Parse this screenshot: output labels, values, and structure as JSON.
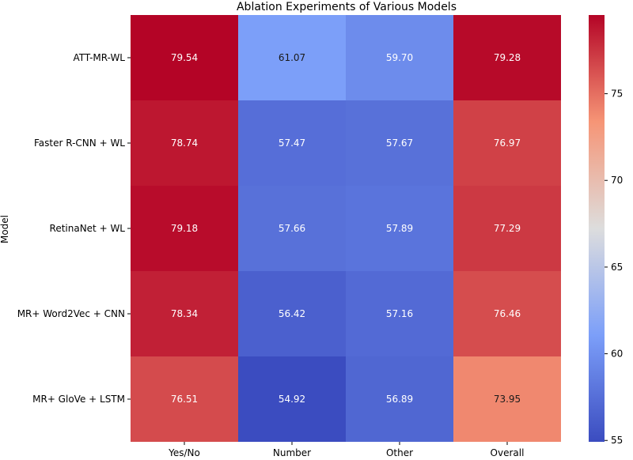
{
  "chart_data": {
    "type": "heatmap",
    "title": "Ablation Experiments of Various Models",
    "xlabel": "",
    "ylabel": "Model",
    "columns": [
      "Yes/No",
      "Number",
      "Other",
      "Overall"
    ],
    "rows": [
      "ATT-MR-WL",
      "Faster R-CNN + WL",
      "RetinaNet + WL",
      "MR+ Word2Vec + CNN",
      "MR+ GloVe + LSTM"
    ],
    "values": [
      [
        79.54,
        61.07,
        59.7,
        79.28
      ],
      [
        78.74,
        57.47,
        57.67,
        76.97
      ],
      [
        79.18,
        57.66,
        57.89,
        77.29
      ],
      [
        78.34,
        56.42,
        57.16,
        76.46
      ],
      [
        76.51,
        54.92,
        56.89,
        73.95
      ]
    ],
    "value_labels": [
      [
        "79.54",
        "61.07",
        "59.70",
        "79.28"
      ],
      [
        "78.74",
        "57.47",
        "57.67",
        "76.97"
      ],
      [
        "79.18",
        "57.66",
        "57.89",
        "77.29"
      ],
      [
        "78.34",
        "56.42",
        "57.16",
        "76.46"
      ],
      [
        "76.51",
        "54.92",
        "56.89",
        "73.95"
      ]
    ],
    "colormap": "coolwarm",
    "vmin": 54.92,
    "vmax": 79.54,
    "colorbar_ticks": [
      55,
      60,
      65,
      70,
      75
    ],
    "colorbar_tick_labels": [
      "55",
      "60",
      "65",
      "70",
      "75"
    ]
  }
}
